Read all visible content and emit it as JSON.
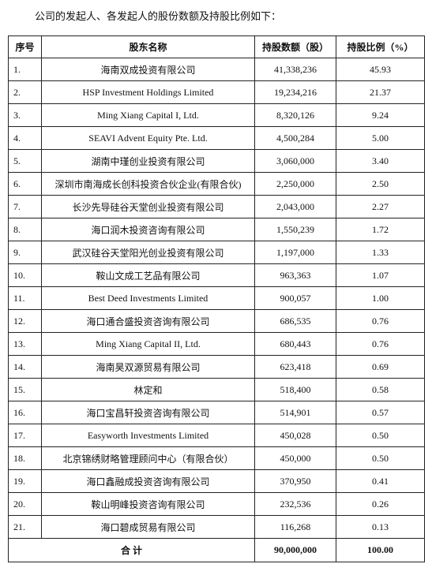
{
  "intro": "公司的发起人、各发起人的股份数额及持股比例如下：",
  "table": {
    "headers": [
      "序号",
      "股东名称",
      "持股数额（股）",
      "持股比例（%）"
    ],
    "rows": [
      [
        "1.",
        "海南双成投资有限公司",
        "41,338,236",
        "45.93"
      ],
      [
        "2.",
        "HSP Investment Holdings Limited",
        "19,234,216",
        "21.37"
      ],
      [
        "3.",
        "Ming Xiang Capital I, Ltd.",
        "8,320,126",
        "9.24"
      ],
      [
        "4.",
        "SEAVI Advent Equity Pte. Ltd.",
        "4,500,284",
        "5.00"
      ],
      [
        "5.",
        "湖南中瑾创业投资有限公司",
        "3,060,000",
        "3.40"
      ],
      [
        "6.",
        "深圳市南海成长创科投资合伙企业(有限合伙)",
        "2,250,000",
        "2.50"
      ],
      [
        "7.",
        "长沙先导硅谷天堂创业投资有限公司",
        "2,043,000",
        "2.27"
      ],
      [
        "8.",
        "海口润木投资咨询有限公司",
        "1,550,239",
        "1.72"
      ],
      [
        "9.",
        "武汉硅谷天堂阳光创业投资有限公司",
        "1,197,000",
        "1.33"
      ],
      [
        "10.",
        "鞍山文成工艺品有限公司",
        "963,363",
        "1.07"
      ],
      [
        "11.",
        "Best Deed Investments Limited",
        "900,057",
        "1.00"
      ],
      [
        "12.",
        "海口通合盛投资咨询有限公司",
        "686,535",
        "0.76"
      ],
      [
        "13.",
        "Ming Xiang Capital II, Ltd.",
        "680,443",
        "0.76"
      ],
      [
        "14.",
        "海南昊双源贸易有限公司",
        "623,418",
        "0.69"
      ],
      [
        "15.",
        "林定和",
        "518,400",
        "0.58"
      ],
      [
        "16.",
        "海口宝昌轩投资咨询有限公司",
        "514,901",
        "0.57"
      ],
      [
        "17.",
        "Easyworth Investments Limited",
        "450,028",
        "0.50"
      ],
      [
        "18.",
        "北京锦绣财略管理顾问中心（有限合伙）",
        "450,000",
        "0.50"
      ],
      [
        "19.",
        "海口鑫融成投资咨询有限公司",
        "370,950",
        "0.41"
      ],
      [
        "20.",
        "鞍山明峰投资咨询有限公司",
        "232,536",
        "0.26"
      ],
      [
        "21.",
        "海口碧成贸易有限公司",
        "116,268",
        "0.13"
      ]
    ],
    "total": [
      "合 计",
      "90,000,000",
      "100.00"
    ]
  }
}
